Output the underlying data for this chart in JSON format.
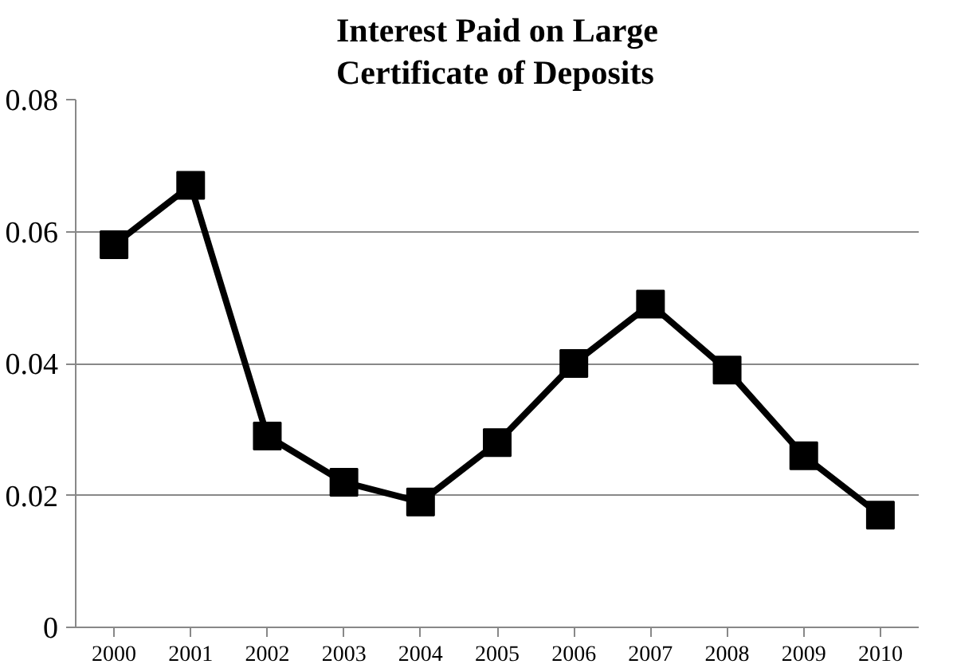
{
  "chart_data": {
    "type": "line",
    "title": "Interest Paid on Large Certificate of Deposits",
    "categories": [
      "2000",
      "2001",
      "2002",
      "2003",
      "2004",
      "2005",
      "2006",
      "2007",
      "2008",
      "2009",
      "2010"
    ],
    "series": [
      {
        "color": "#000000",
        "values": [
          0.058,
          0.067,
          0.029,
          0.022,
          0.019,
          0.028,
          0.04,
          0.049,
          0.039,
          0.026,
          0.017
        ]
      }
    ],
    "ylim": [
      0,
      0.08
    ],
    "yticks": [
      {
        "value": 0,
        "label": "0"
      },
      0.02,
      0.04,
      0.06,
      0.08
    ],
    "grid": "y",
    "marker": "square",
    "line_style": "solid"
  }
}
